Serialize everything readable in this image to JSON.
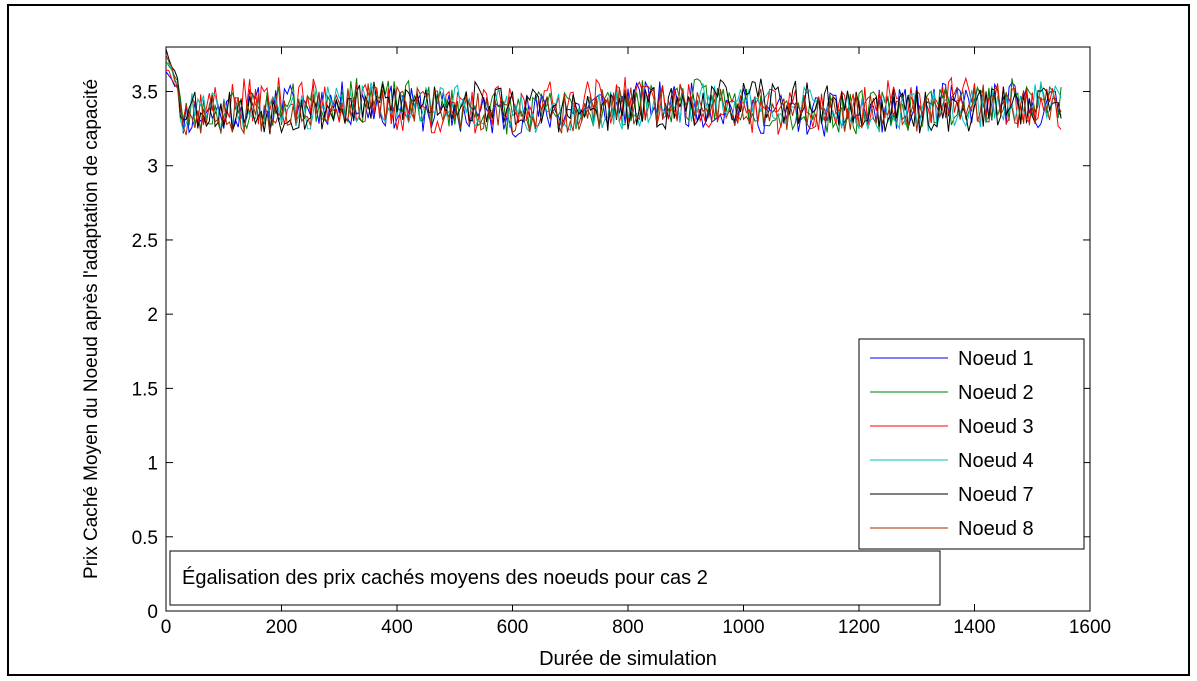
{
  "chart_data": {
    "type": "line",
    "title": "",
    "xlabel": "Durée de simulation",
    "ylabel": "Prix Caché Moyen du Noeud après l'adaptation de capacité",
    "xlim": [
      0,
      1600
    ],
    "ylim": [
      0,
      3.8
    ],
    "xticks": [
      0,
      200,
      400,
      600,
      800,
      1000,
      1200,
      1400,
      1600
    ],
    "yticks": [
      0,
      0.5,
      1,
      1.5,
      2,
      2.5,
      3,
      3.5
    ],
    "xtick_labels": [
      "0",
      "200",
      "400",
      "600",
      "800",
      "1000",
      "1200",
      "1400",
      "1600"
    ],
    "ytick_labels": [
      "0",
      "0.5",
      "1",
      "1.5",
      "2",
      "2.5",
      "3",
      "3.5"
    ],
    "grid": false,
    "legend_position": "lower-right",
    "annotation": "Égalisation des prix cachés moyens des noeuds pour cas 2",
    "x_max_data": 1550,
    "sample_step": 5,
    "series": [
      {
        "name": "Noeud 1",
        "color": "#0000ff",
        "start": 3.65,
        "mean": 3.38,
        "amplitude": 0.15,
        "seed": 11
      },
      {
        "name": "Noeud 2",
        "color": "#008000",
        "start": 3.72,
        "mean": 3.4,
        "amplitude": 0.15,
        "seed": 23
      },
      {
        "name": "Noeud 3",
        "color": "#ff0000",
        "start": 3.66,
        "mean": 3.4,
        "amplitude": 0.16,
        "seed": 37
      },
      {
        "name": "Noeud 4",
        "color": "#00bfbf",
        "start": 3.7,
        "mean": 3.39,
        "amplitude": 0.14,
        "seed": 41
      },
      {
        "name": "Noeud 7",
        "color": "#000000",
        "start": 3.8,
        "mean": 3.4,
        "amplitude": 0.15,
        "seed": 53
      },
      {
        "name": "Noeud 8",
        "color": "#a52a00",
        "start": 3.76,
        "mean": 3.38,
        "amplitude": 0.14,
        "seed": 67
      }
    ]
  }
}
